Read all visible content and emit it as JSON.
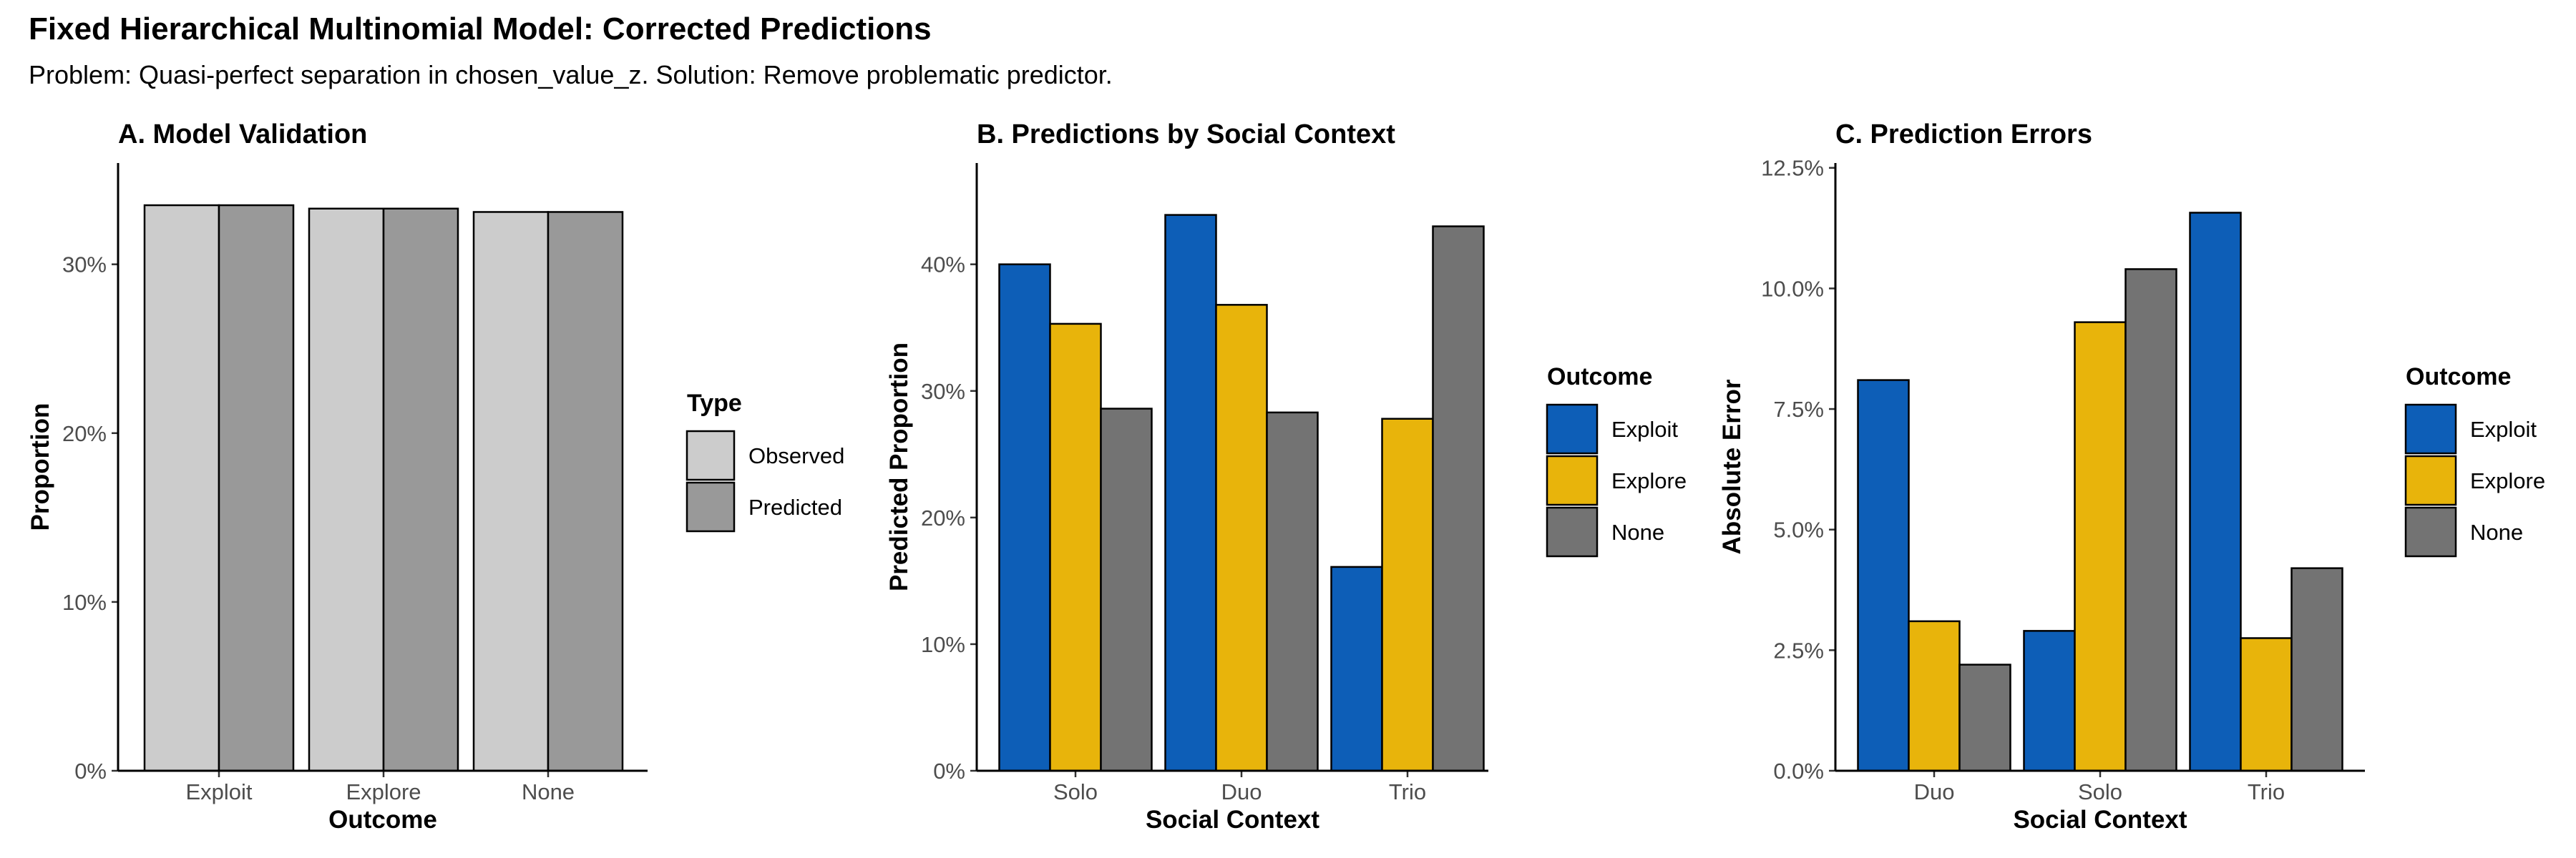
{
  "title": "Fixed Hierarchical Multinomial Model: Corrected Predictions",
  "subtitle": "Problem: Quasi-perfect separation in chosen_value_z. Solution: Remove problematic predictor.",
  "colors": {
    "Observed": "#cccccc",
    "Predicted": "#999999",
    "Exploit": "#0d5eb7",
    "Explore": "#e8b40b",
    "None": "#737373"
  },
  "chart_data": [
    {
      "type": "bar",
      "title": "A. Model Validation",
      "xlabel": "Outcome",
      "ylabel": "Proportion",
      "categories": [
        "Exploit",
        "Explore",
        "None"
      ],
      "series": [
        {
          "name": "Observed",
          "values": [
            0.335,
            0.333,
            0.331
          ]
        },
        {
          "name": "Predicted",
          "values": [
            0.335,
            0.333,
            0.331
          ]
        }
      ],
      "ylim": [
        0,
        0.36
      ],
      "yticks": [
        0,
        0.1,
        0.2,
        0.3
      ],
      "ytick_labels": [
        "0%",
        "10%",
        "20%",
        "30%"
      ],
      "legend_title": "Type",
      "legend_position": "right",
      "grid": false
    },
    {
      "type": "bar",
      "title": "B. Predictions by Social Context",
      "xlabel": "Social Context",
      "ylabel": "Predicted Proportion",
      "categories": [
        "Solo",
        "Duo",
        "Trio"
      ],
      "series": [
        {
          "name": "Exploit",
          "values": [
            0.4,
            0.439,
            0.161
          ]
        },
        {
          "name": "Explore",
          "values": [
            0.353,
            0.368,
            0.278
          ]
        },
        {
          "name": "None",
          "values": [
            0.286,
            0.283,
            0.43
          ]
        }
      ],
      "ylim": [
        0,
        0.48
      ],
      "yticks": [
        0,
        0.1,
        0.2,
        0.3,
        0.4
      ],
      "ytick_labels": [
        "0%",
        "10%",
        "20%",
        "30%",
        "40%"
      ],
      "legend_title": "Outcome",
      "legend_position": "right",
      "grid": false
    },
    {
      "type": "bar",
      "title": "C. Prediction Errors",
      "xlabel": "Social Context",
      "ylabel": "Absolute Error",
      "categories": [
        "Duo",
        "Solo",
        "Trio"
      ],
      "series": [
        {
          "name": "Exploit",
          "values": [
            0.081,
            0.029,
            0.1157
          ]
        },
        {
          "name": "Explore",
          "values": [
            0.031,
            0.093,
            0.0275
          ]
        },
        {
          "name": "None",
          "values": [
            0.022,
            0.104,
            0.042
          ]
        }
      ],
      "ylim": [
        0,
        0.126
      ],
      "yticks": [
        0,
        0.025,
        0.05,
        0.075,
        0.1,
        0.125
      ],
      "ytick_labels": [
        "0.0%",
        "2.5%",
        "5.0%",
        "7.5%",
        "10.0%",
        "12.5%"
      ],
      "legend_title": "Outcome",
      "legend_position": "right",
      "grid": false
    }
  ]
}
